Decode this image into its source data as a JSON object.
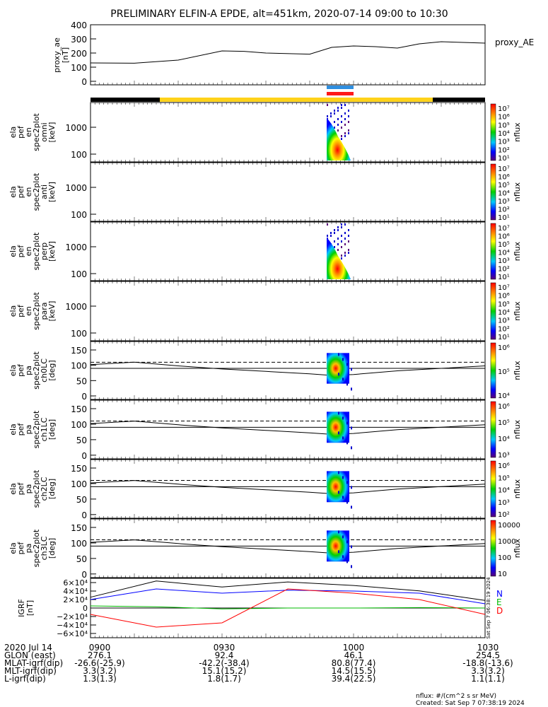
{
  "title": "PRELIMINARY ELFIN-A EPDE, alt=451km, 2020-07-14 09:00 to 10:30",
  "top_panel": {
    "ylabel_lines": [
      "proxy_ae",
      "[nT]"
    ],
    "legend": "proxy_AE",
    "yticks": [
      "400",
      "300",
      "200",
      "100",
      "0"
    ]
  },
  "colors": {
    "spin_bar": "#2f8fe0",
    "fgm_bar": "#ff1a1a",
    "day_bar": "#ffd21a",
    "night_bar": "#000000"
  },
  "panels": [
    {
      "label_lines": [
        "ela",
        "pef",
        "en",
        "spec2plot",
        "omni",
        "[keV]"
      ],
      "yticks": [
        "1000",
        "100"
      ],
      "cbar": [
        "10⁷",
        "10⁶",
        "10⁵",
        "10⁴",
        "10³",
        "10²",
        "10¹"
      ],
      "cbar_label": "nflux"
    },
    {
      "label_lines": [
        "ela",
        "pef",
        "en",
        "spec2plot",
        "anti",
        "[keV]"
      ],
      "yticks": [
        "1000",
        "100"
      ],
      "cbar": [
        "10⁷",
        "10⁶",
        "10⁵",
        "10⁴",
        "10³",
        "10²",
        "10¹"
      ],
      "cbar_label": "nflux"
    },
    {
      "label_lines": [
        "ela",
        "pef",
        "en",
        "spec2plot",
        "perp",
        "[keV]"
      ],
      "yticks": [
        "1000",
        "100"
      ],
      "cbar": [
        "10⁷",
        "10⁶",
        "10⁵",
        "10⁴",
        "10³",
        "10²",
        "10¹"
      ],
      "cbar_label": "nflux"
    },
    {
      "label_lines": [
        "ela",
        "pef",
        "en",
        "spec2plot",
        "para",
        "[keV]"
      ],
      "yticks": [
        "1000",
        "100"
      ],
      "cbar": [
        "10⁷",
        "10⁶",
        "10⁵",
        "10⁴",
        "10³",
        "10²",
        "10¹"
      ],
      "cbar_label": "nflux"
    },
    {
      "label_lines": [
        "ela",
        "pef",
        "pa",
        "spec2plot",
        "ch0LC",
        "[deg]"
      ],
      "yticks": [
        "150",
        "100",
        "50",
        "0"
      ],
      "cbar": [
        "10⁶",
        "10⁵",
        "10⁴"
      ],
      "cbar_label": "nflux"
    },
    {
      "label_lines": [
        "ela",
        "pef",
        "pa",
        "spec2plot",
        "ch1LC",
        "[deg]"
      ],
      "yticks": [
        "150",
        "100",
        "50",
        "0"
      ],
      "cbar": [
        "10⁶",
        "10⁵",
        "10⁴",
        "10³"
      ],
      "cbar_label": "nflux"
    },
    {
      "label_lines": [
        "ela",
        "pef",
        "pa",
        "spec2plot",
        "ch2LC",
        "[deg]"
      ],
      "yticks": [
        "150",
        "100",
        "50",
        "0"
      ],
      "cbar": [
        "10⁶",
        "10⁵",
        "10⁴",
        "10³",
        "10²"
      ],
      "cbar_label": "nflux"
    },
    {
      "label_lines": [
        "ela",
        "pef",
        "pa",
        "spec2plot",
        "ch3LC",
        "[deg]"
      ],
      "yticks": [
        "150",
        "100",
        "50",
        "0"
      ],
      "cbar": [
        "10000",
        "1000",
        "100",
        "10"
      ],
      "cbar_label": "nflux"
    }
  ],
  "igrf_panel": {
    "ylabel_lines": [
      "IGRF",
      "[nT]"
    ],
    "yticks": [
      "6×10⁴",
      "4×10⁴",
      "2×10⁴",
      "0",
      "−2×10⁴",
      "−4×10⁴",
      "−6×10⁴"
    ],
    "legend": [
      {
        "text": "N",
        "color": "#0000ff"
      },
      {
        "text": "E",
        "color": "#00bb00"
      },
      {
        "text": "D",
        "color": "#ff0000"
      }
    ]
  },
  "timestamp_vertical": "Sat Sep  7 06:38:19 2024",
  "orbit_table": {
    "rows": [
      [
        "2020 Jul 14",
        "0900",
        "0930",
        "1000",
        "1030"
      ],
      [
        "GLON (east)",
        "276.1",
        "92.4",
        "46.1",
        "254.5"
      ],
      [
        "MLAT-igrf(dip)",
        "-26.6(-25.9)",
        "-42.2(-38.4)",
        "80.8(77.4)",
        "-18.8(-13.6)"
      ],
      [
        "MLT-igrf(dip)",
        "3.3(3.2)",
        "15.1(15.2)",
        "14.5(15.5)",
        "3.3(3.2)"
      ],
      [
        "L-igrf(dip)",
        "1.3(1.3)",
        "1.8(1.7)",
        "39.4(22.5)",
        "1.1(1.1)"
      ]
    ]
  },
  "footer": {
    "units": "nflux: #/(cm^2 s sr MeV)",
    "created": "Created: Sat Sep  7 07:38:19 2024"
  },
  "chart_data": {
    "type": "line",
    "title": "PRELIMINARY ELFIN-A EPDE, alt=451km, 2020-07-14 09:00 to 10:30",
    "x_ticks": [
      "0900",
      "0930",
      "1000",
      "1030"
    ],
    "proxy_ae": {
      "name": "proxy_AE",
      "ylim": [
        0,
        400
      ],
      "x_min": [
        0,
        10,
        20,
        30,
        35,
        40,
        50,
        55,
        60,
        65,
        70,
        75,
        80,
        90
      ],
      "values": [
        130,
        128,
        150,
        215,
        212,
        200,
        192,
        240,
        250,
        245,
        235,
        265,
        280,
        270
      ]
    },
    "igrf": {
      "ylim": [
        -60000,
        60000
      ],
      "x_min": [
        0,
        15,
        30,
        45,
        60,
        75,
        90
      ],
      "series": [
        {
          "name": "N",
          "values": [
            20000,
            45000,
            35000,
            42000,
            40000,
            35000,
            10000
          ]
        },
        {
          "name": "E",
          "values": [
            5000,
            3000,
            -2000,
            0,
            0,
            1000,
            0
          ]
        },
        {
          "name": "D",
          "values": [
            -15000,
            -45000,
            -35000,
            45000,
            35000,
            20000,
            -15000
          ]
        }
      ]
    }
  }
}
